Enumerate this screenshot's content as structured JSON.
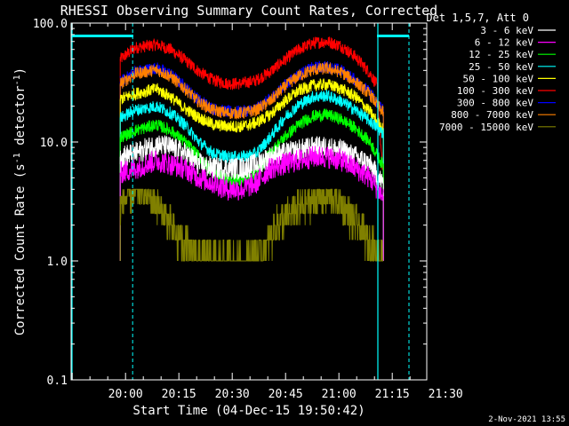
{
  "chart_data": {
    "type": "line",
    "title": "RHESSI Observing Summary Count Rates, Corrected",
    "xlabel": "Start Time (04-Dec-15 19:50:42)",
    "ylabel_main": "Corrected Count Rate (s",
    "ylabel_sup1": "-1",
    "ylabel_mid": " detector",
    "ylabel_sup2": "-1",
    "ylabel_end": ")",
    "y_scale": "log",
    "ylim": [
      0.1,
      100
    ],
    "xlim_min": [
      -6,
      94
    ],
    "x_ticks": [
      {
        "m": 9.3,
        "label": "20:00"
      },
      {
        "m": 24.3,
        "label": "20:15"
      },
      {
        "m": 39.3,
        "label": "20:30"
      },
      {
        "m": 54.3,
        "label": "20:45"
      },
      {
        "m": 69.3,
        "label": "21:00"
      },
      {
        "m": 84.3,
        "label": "21:15"
      },
      {
        "m": 99.3,
        "label": "21:30"
      }
    ],
    "y_ticks": [
      {
        "v": 100,
        "label": "100.0"
      },
      {
        "v": 10,
        "label": "10.0"
      },
      {
        "v": 1,
        "label": "1.0"
      },
      {
        "v": 0.1,
        "label": "0.1"
      }
    ],
    "legend_title": "Det 1,5,7, Att 0",
    "legend_position": "top-right, outside plot",
    "grid": false,
    "timestamp": "2-Nov-2021 13:55",
    "flag_lines": {
      "solid_x": [
        -6,
        80
      ],
      "dashed_x": [
        11.3,
        89
      ],
      "night_segments": [
        [
          -6,
          11.5
        ],
        [
          80,
          89
        ]
      ],
      "night_level": 78,
      "color": "#00ffff"
    },
    "time_range": [
      7.8,
      81.8
    ],
    "series": [
      {
        "name": "3 - 6 keV",
        "color": "#ffffff",
        "x": [
          8,
          12,
          18,
          22,
          26,
          30,
          34,
          38,
          42,
          46,
          50,
          54,
          58,
          62,
          66,
          70,
          74,
          78,
          81.5
        ],
        "y": [
          7.5,
          8,
          9.5,
          9,
          8,
          6.5,
          6,
          6,
          6,
          6.5,
          7.5,
          8,
          8.5,
          9,
          9,
          8.5,
          7.5,
          6.5,
          4.5
        ]
      },
      {
        "name": "6 - 12 keV",
        "color": "#ff00ff",
        "x": [
          8,
          12,
          18,
          22,
          26,
          30,
          34,
          38,
          42,
          46,
          50,
          54,
          58,
          62,
          66,
          70,
          74,
          78,
          81.5
        ],
        "y": [
          5.5,
          6,
          7,
          6.5,
          6,
          5,
          4.5,
          4,
          4,
          4.5,
          6,
          6.5,
          7,
          7.5,
          7.5,
          7,
          6,
          5,
          3.5
        ]
      },
      {
        "name": "12 - 25 keV",
        "color": "#00ff00",
        "x": [
          8,
          12,
          18,
          22,
          26,
          30,
          34,
          38,
          42,
          46,
          50,
          54,
          58,
          62,
          66,
          70,
          74,
          78,
          81.5
        ],
        "y": [
          11,
          12.5,
          14,
          12.5,
          10,
          7.5,
          5.5,
          4.8,
          4.8,
          5.5,
          8,
          11,
          14,
          16.5,
          17,
          15.5,
          13,
          10,
          6.5
        ]
      },
      {
        "name": "25 - 50 keV",
        "color": "#00ffff",
        "x": [
          8,
          12,
          18,
          22,
          26,
          30,
          34,
          38,
          42,
          46,
          50,
          54,
          58,
          62,
          66,
          70,
          74,
          78,
          81.5
        ],
        "y": [
          16,
          18.5,
          20,
          17.5,
          14,
          10,
          8,
          7.5,
          7.5,
          8,
          11,
          16,
          20.5,
          24,
          24.5,
          22,
          18.5,
          15,
          12
        ]
      },
      {
        "name": "50 - 100 keV",
        "color": "#ffff00",
        "x": [
          8,
          12,
          18,
          22,
          26,
          30,
          34,
          38,
          42,
          46,
          50,
          54,
          58,
          62,
          66,
          70,
          74,
          78,
          81.5
        ],
        "y": [
          23,
          25.5,
          28,
          24,
          19,
          16,
          14,
          13.5,
          13.5,
          14.5,
          17,
          22,
          27,
          30,
          30.5,
          28,
          24,
          18,
          13
        ]
      },
      {
        "name": "100 - 300 keV",
        "color": "#ff0000",
        "x": [
          8,
          12,
          18,
          22,
          26,
          30,
          34,
          38,
          42,
          46,
          50,
          54,
          58,
          62,
          66,
          70,
          74,
          78,
          80,
          81.5
        ],
        "y": [
          50,
          62,
          66,
          60,
          49,
          39,
          33,
          31,
          31,
          33,
          39,
          49,
          60,
          68,
          70,
          64,
          52,
          38,
          30,
          6
        ]
      },
      {
        "name": "300 - 800 keV",
        "color": "#0000ff",
        "x": [
          8,
          12,
          18,
          22,
          26,
          30,
          34,
          38,
          42,
          46,
          50,
          54,
          58,
          62,
          66,
          70,
          74,
          78,
          81.5
        ],
        "y": [
          32,
          39,
          42,
          37,
          29,
          22.5,
          19,
          18,
          18,
          19,
          23,
          30,
          37,
          42,
          43,
          40,
          33,
          26,
          19
        ]
      },
      {
        "name": "800 - 7000 keV",
        "color": "#ff8000",
        "x": [
          8,
          12,
          18,
          22,
          26,
          30,
          34,
          38,
          42,
          46,
          50,
          54,
          58,
          62,
          66,
          70,
          74,
          78,
          81.5
        ],
        "y": [
          31,
          37.5,
          40.5,
          35.5,
          28,
          21.5,
          18.5,
          17.5,
          17.5,
          18.5,
          22,
          29,
          36,
          40.5,
          41.5,
          38.5,
          32,
          25,
          18
        ]
      },
      {
        "name": "7000 - 15000 keV",
        "color": "#808000",
        "x": [
          8,
          10,
          14,
          18,
          22,
          24,
          28,
          32,
          36,
          40,
          44,
          48,
          50,
          52,
          56,
          60,
          64,
          68,
          72,
          74,
          78,
          81.5
        ],
        "y": [
          3,
          3.5,
          4,
          3,
          2,
          1.5,
          1.2,
          1,
          1,
          1,
          1,
          1.2,
          1.5,
          2,
          2.5,
          3,
          3.5,
          3.5,
          2.5,
          2,
          1.5,
          1
        ]
      }
    ]
  }
}
